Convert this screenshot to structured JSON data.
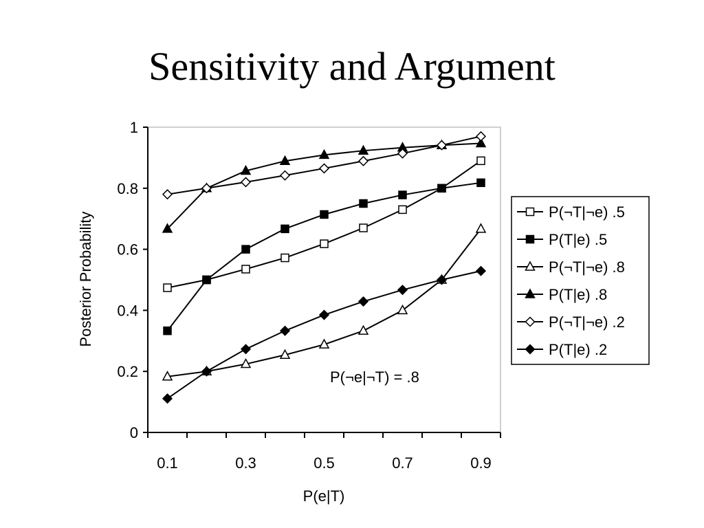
{
  "slide": {
    "title": "Sensitivity and Argument"
  },
  "chart_data": {
    "type": "line",
    "title": "",
    "xlabel": "P(e|T)",
    "ylabel": "Posterior Probability",
    "xlim": [
      0.05,
      0.95
    ],
    "ylim": [
      0,
      1
    ],
    "xticks": [
      "0.1",
      "0.3",
      "0.5",
      "0.7",
      "0.9"
    ],
    "yticks": [
      "0",
      "0.2",
      "0.4",
      "0.6",
      "0.8",
      "1"
    ],
    "grid": false,
    "legend_position": "right",
    "annotation": "P(¬e|¬T) = .8",
    "x": [
      0.1,
      0.2,
      0.3,
      0.4,
      0.5,
      0.6,
      0.7,
      0.8,
      0.9
    ],
    "series": [
      {
        "name": "P(¬T|¬e) .5",
        "marker": "square-open",
        "values": [
          0.474,
          0.5,
          0.535,
          0.572,
          0.618,
          0.67,
          0.73,
          0.8,
          0.89
        ]
      },
      {
        "name": "P(T|e) .5",
        "marker": "square-filled",
        "values": [
          0.333,
          0.5,
          0.6,
          0.667,
          0.714,
          0.75,
          0.778,
          0.8,
          0.818
        ]
      },
      {
        "name": "P(¬T|¬e) .8",
        "marker": "triangle-open",
        "values": [
          0.183,
          0.2,
          0.224,
          0.254,
          0.288,
          0.333,
          0.4,
          0.5,
          0.667
        ]
      },
      {
        "name": "P(T|e) .8",
        "marker": "triangle-filled",
        "values": [
          0.667,
          0.8,
          0.857,
          0.889,
          0.909,
          0.923,
          0.933,
          0.941,
          0.947
        ]
      },
      {
        "name": "P(¬T|¬e) .2",
        "marker": "diamond-open",
        "values": [
          0.78,
          0.8,
          0.82,
          0.842,
          0.865,
          0.889,
          0.914,
          0.941,
          0.97
        ]
      },
      {
        "name": "P(T|e) .2",
        "marker": "diamond-filled",
        "values": [
          0.111,
          0.2,
          0.273,
          0.333,
          0.385,
          0.429,
          0.467,
          0.5,
          0.529
        ]
      }
    ]
  }
}
